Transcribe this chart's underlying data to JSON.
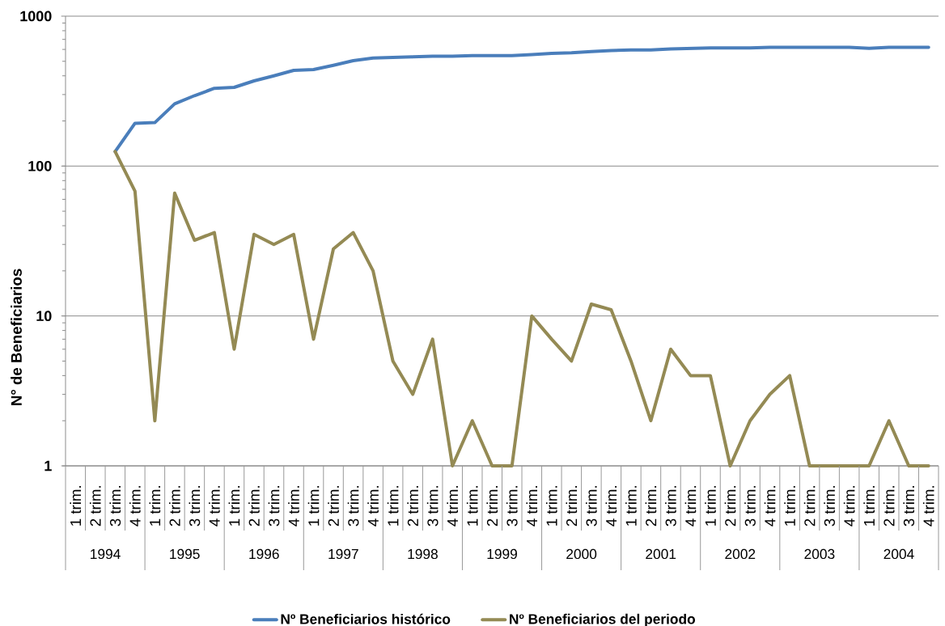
{
  "chart_data": {
    "type": "line",
    "ylabel": "N° de Beneficiarios",
    "categories": [
      "1 trim.",
      "2 trim.",
      "3 trim.",
      "4 trim.",
      "1 trim.",
      "2 trim.",
      "3 trim.",
      "4 trim.",
      "1 trim.",
      "2 trim.",
      "3 trim.",
      "4 trim.",
      "1 trim.",
      "2 trim.",
      "3 trim.",
      "4 trim.",
      "1 trim.",
      "2 trim.",
      "3 trim.",
      "4 trim.",
      "1 trim.",
      "2 trim.",
      "3 trim.",
      "4 trim.",
      "1 trim.",
      "2 trim.",
      "3 trim.",
      "4 trim.",
      "1 trim.",
      "2 trim.",
      "3 trim.",
      "4 trim.",
      "1 trim.",
      "2 trim.",
      "3 trim.",
      "4 trim.",
      "1 trim.",
      "2 trim.",
      "3 trim.",
      "4 trim.",
      "1 trim.",
      "2 trim.",
      "3 trim.",
      "4 trim."
    ],
    "annotations": [
      "1994",
      "1995",
      "1996",
      "1997",
      "1998",
      "1999",
      "2000",
      "2001",
      "2002",
      "2003",
      "2004"
    ],
    "series": [
      {
        "name": "Nº Beneficiarios histórico",
        "color": "#4a7ebb",
        "values": [
          null,
          null,
          125,
          193,
          195,
          260,
          295,
          330,
          335,
          370,
          400,
          435,
          440,
          470,
          505,
          525,
          530,
          535,
          540,
          540,
          545,
          545,
          545,
          555,
          565,
          570,
          580,
          590,
          595,
          595,
          605,
          610,
          615,
          615,
          615,
          620,
          620,
          620,
          620,
          620,
          610,
          620,
          620,
          620
        ]
      },
      {
        "name": "Nº Beneficiarios del periodo",
        "color": "#948a54",
        "values": [
          null,
          null,
          125,
          68,
          2,
          66,
          32,
          36,
          6,
          35,
          30,
          35,
          7,
          28,
          36,
          20,
          5,
          3,
          7,
          1,
          2,
          1,
          1,
          10,
          7,
          5,
          12,
          11,
          5,
          2,
          6,
          4,
          4,
          1,
          2,
          3,
          4,
          1,
          1,
          1,
          1,
          2,
          1,
          1
        ]
      }
    ],
    "log": true,
    "ylim": [
      1,
      1000
    ],
    "yticks": [
      1,
      10,
      100,
      1000
    ],
    "grid": "y",
    "legend": "bottom",
    "marker": "none",
    "line_style": "solid"
  }
}
